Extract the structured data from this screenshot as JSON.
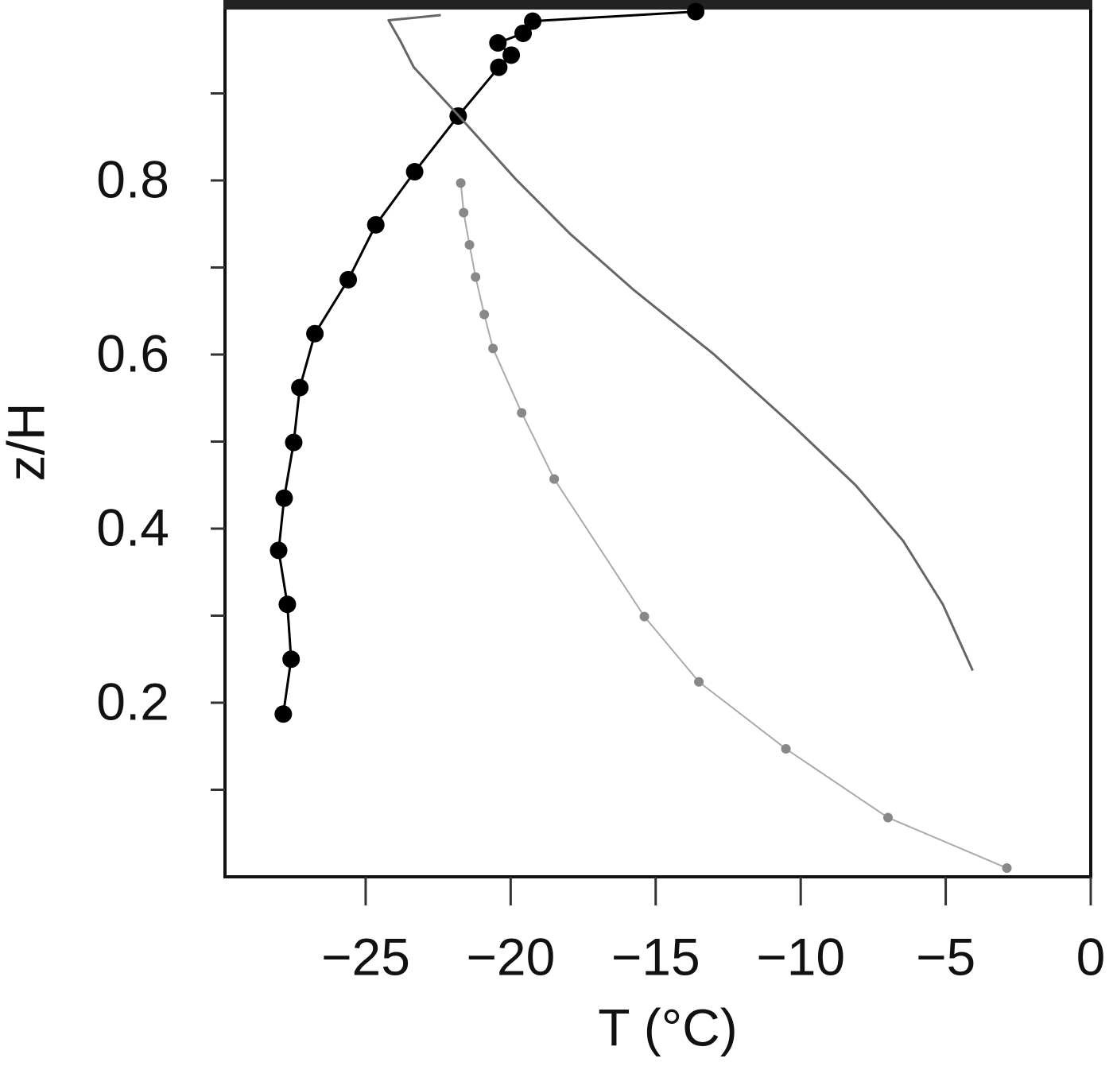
{
  "chart_data": {
    "type": "line",
    "xlabel": "T (°C)",
    "ylabel": "z/H",
    "xlim": [
      -29.85,
      0
    ],
    "ylim": [
      0,
      1
    ],
    "xticks": [
      {
        "value": -25,
        "label": "−25"
      },
      {
        "value": -20,
        "label": "−20"
      },
      {
        "value": -15,
        "label": "−15"
      },
      {
        "value": -10,
        "label": "−10"
      },
      {
        "value": -5,
        "label": "−5"
      },
      0
    ],
    "yticks": [
      0.2,
      0.4,
      0.6,
      0.8
    ],
    "yminor_ticks": [
      0.1,
      0.3,
      0.5,
      0.7,
      0.9
    ],
    "series": [
      {
        "color": "#000000",
        "markers": true,
        "marker_size": 11,
        "line_width": 3,
        "x": [
          -27.84,
          -27.57,
          -27.7,
          -28.0,
          -27.81,
          -27.48,
          -27.27,
          -26.75,
          -25.6,
          -24.65,
          -23.31,
          -21.81,
          -20.41,
          -19.98,
          -20.44,
          -19.57,
          -19.24,
          -13.62
        ],
        "values": [
          0.187,
          0.25,
          0.313,
          0.375,
          0.435,
          0.499,
          0.562,
          0.624,
          0.686,
          0.749,
          0.81,
          0.874,
          0.93,
          0.944,
          0.958,
          0.969,
          0.983,
          0.994
        ]
      },
      {
        "color": "#666666",
        "markers": false,
        "line_width": 3,
        "x": [
          -22.41,
          -24.21,
          -23.8,
          -23.34,
          -21.81,
          -19.84,
          -17.93,
          -15.75,
          -13.02,
          -10.29,
          -8.11,
          -6.47,
          -5.1,
          -4.07
        ],
        "values": [
          0.99,
          0.984,
          0.96,
          0.93,
          0.875,
          0.802,
          0.738,
          0.674,
          0.601,
          0.519,
          0.45,
          0.386,
          0.313,
          0.237
        ]
      },
      {
        "color": "#aaaaaa",
        "marker_color": "#888888",
        "markers": true,
        "marker_size": 6,
        "line_width": 2,
        "x": [
          -21.72,
          -21.62,
          -21.42,
          -21.21,
          -20.91,
          -20.61,
          -19.62,
          -18.5,
          -15.39,
          -13.51,
          -10.51,
          -6.99,
          -2.89
        ],
        "values": [
          0.797,
          0.763,
          0.726,
          0.689,
          0.646,
          0.607,
          0.533,
          0.457,
          0.299,
          0.224,
          0.147,
          0.068,
          0.01
        ]
      }
    ]
  }
}
